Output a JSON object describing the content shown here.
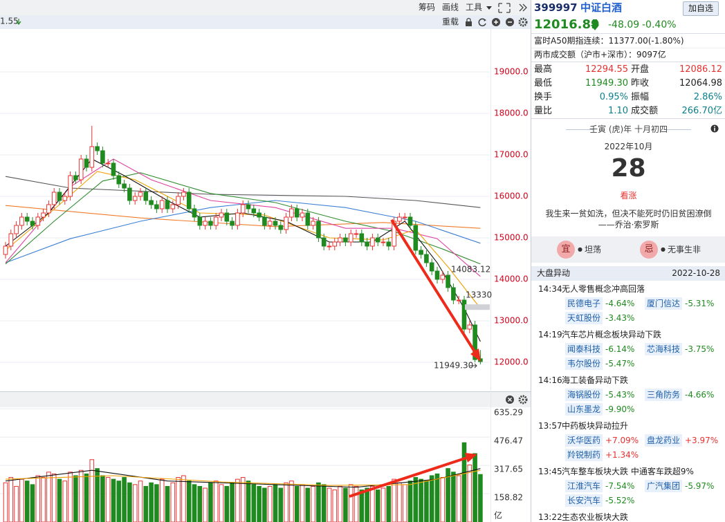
{
  "toolbar": {
    "items": [
      "筹码",
      "画线",
      "工具"
    ]
  },
  "chart_header": {
    "ma_label": "1.55",
    "reload": "重载"
  },
  "chart_data": [
    {
      "type": "candlestick",
      "categories": [
        null,
        null,
        null,
        null,
        null,
        null,
        null,
        null,
        null,
        null,
        null,
        null,
        null,
        null,
        null,
        null,
        null,
        null,
        null,
        null,
        null,
        null,
        null,
        null,
        null,
        null,
        null,
        null,
        null,
        null,
        null,
        null,
        null,
        null,
        null,
        null,
        null,
        null,
        null,
        null,
        null,
        null,
        null,
        null,
        null,
        null,
        null,
        null,
        null,
        null,
        null,
        null,
        null,
        null,
        null,
        null,
        null,
        null,
        null,
        null,
        null,
        null,
        null,
        null,
        null,
        null,
        null,
        null,
        null,
        null,
        null,
        null,
        null,
        null,
        null,
        null,
        null,
        null,
        null,
        null,
        null,
        null,
        null,
        null,
        null,
        null,
        null,
        null,
        null
      ],
      "open": [
        14600,
        14800,
        15100,
        15300,
        15500,
        15400,
        15300,
        15500,
        15600,
        15800,
        16100,
        15900,
        16000,
        16500,
        16400,
        16900,
        16700,
        17200,
        17100,
        16800,
        16800,
        16500,
        16300,
        16200,
        15900,
        16000,
        16100,
        15900,
        15800,
        15700,
        15900,
        15700,
        15800,
        16000,
        16100,
        15700,
        15500,
        15300,
        15400,
        15300,
        15500,
        15600,
        15400,
        15300,
        15600,
        15800,
        15700,
        15600,
        15500,
        15300,
        15400,
        15300,
        15200,
        15500,
        15700,
        15500,
        15600,
        15300,
        15400,
        15000,
        14800,
        14800,
        14900,
        15000,
        14900,
        15100,
        15100,
        14900,
        14800,
        15000,
        14900,
        14900,
        14800,
        15400,
        15500,
        15500,
        15300,
        14700,
        14600,
        14400,
        14200,
        14000,
        14100,
        13800,
        13500,
        13500,
        12800,
        12900,
        12086.12
      ],
      "high": [
        14900,
        15200,
        15400,
        15600,
        15600,
        15500,
        15600,
        15700,
        15900,
        16200,
        16200,
        16100,
        16600,
        16600,
        17000,
        17000,
        17700,
        17300,
        17200,
        16900,
        16900,
        16600,
        16400,
        16300,
        16100,
        16200,
        16200,
        16000,
        15900,
        16000,
        16000,
        15900,
        16100,
        16200,
        16200,
        15800,
        15600,
        15500,
        15500,
        15600,
        15700,
        15700,
        15500,
        15700,
        15900,
        15900,
        15800,
        15700,
        15600,
        15500,
        15500,
        15400,
        15600,
        15800,
        15800,
        15700,
        15700,
        15500,
        15500,
        15100,
        14900,
        15000,
        15100,
        15100,
        15200,
        15200,
        15200,
        15000,
        15100,
        15100,
        15000,
        15000,
        15500,
        15600,
        15600,
        15600,
        15400,
        14800,
        14700,
        14500,
        14300,
        14200,
        14200,
        13900,
        13600,
        13600,
        13000,
        13000,
        12294.55
      ],
      "low": [
        14500,
        14700,
        15000,
        15200,
        15300,
        15200,
        15200,
        15400,
        15500,
        15700,
        15800,
        15800,
        15900,
        16300,
        16300,
        16600,
        16600,
        17000,
        16700,
        16700,
        16400,
        16200,
        16100,
        15800,
        15800,
        15900,
        15800,
        15700,
        15600,
        15600,
        15600,
        15600,
        15700,
        15900,
        15600,
        15400,
        15200,
        15200,
        15200,
        15200,
        15400,
        15300,
        15200,
        15200,
        15500,
        15600,
        15500,
        15400,
        15200,
        15200,
        15200,
        15100,
        15100,
        15400,
        15400,
        15400,
        15200,
        15200,
        14900,
        14700,
        14700,
        14700,
        14800,
        14800,
        14800,
        15000,
        14800,
        14700,
        14700,
        14800,
        14800,
        14700,
        14700,
        15300,
        15400,
        15200,
        14600,
        14500,
        14300,
        14100,
        13900,
        13900,
        13700,
        13400,
        13400,
        12700,
        12700,
        12000,
        11949.3
      ],
      "close": [
        14800,
        15100,
        15300,
        15500,
        15400,
        15300,
        15500,
        15600,
        15800,
        16100,
        15900,
        16000,
        16500,
        16400,
        16900,
        16700,
        17200,
        17100,
        16800,
        16800,
        16500,
        16300,
        16200,
        15900,
        16000,
        16100,
        15900,
        15800,
        15700,
        15900,
        15700,
        15800,
        16000,
        16100,
        15700,
        15500,
        15300,
        15400,
        15300,
        15500,
        15600,
        15400,
        15300,
        15600,
        15800,
        15700,
        15600,
        15500,
        15300,
        15400,
        15300,
        15200,
        15500,
        15700,
        15500,
        15600,
        15300,
        15400,
        15000,
        14800,
        14800,
        14900,
        15000,
        14900,
        15100,
        15100,
        14900,
        14800,
        15000,
        14900,
        14900,
        14800,
        15400,
        15500,
        15500,
        15300,
        14700,
        14600,
        14400,
        14200,
        14000,
        14100,
        13800,
        13500,
        13500,
        12800,
        12900,
        12064.98,
        12016.89
      ],
      "up_color": "#e8312f",
      "down_color": "#1f8a1f",
      "ylim": [
        11400,
        19900
      ],
      "yticks": [
        {
          "value": 12000,
          "label": "12000.0"
        },
        {
          "value": 13000,
          "label": "13000.0"
        },
        {
          "value": 14000,
          "label": "14000.0"
        },
        {
          "value": 15000,
          "label": "15000.0"
        },
        {
          "value": 16000,
          "label": "16000.0"
        },
        {
          "value": 17000,
          "label": "17000.0"
        },
        {
          "value": 18000,
          "label": "18000.0"
        },
        {
          "value": 19000,
          "label": "19000.0"
        }
      ],
      "grid": true,
      "price_labels": [
        14083.12,
        13330,
        {
          "value": 11949.3,
          "label": "11949.30"
        }
      ],
      "moving_averages": [
        {
          "color": "#555555",
          "x": [
            0,
            12,
            38,
            63,
            76,
            88
          ],
          "values": [
            16480,
            16200,
            16050,
            16000,
            15900,
            15730
          ]
        },
        {
          "color": "#f07b2a",
          "x": [
            0,
            25,
            50,
            70,
            88
          ],
          "values": [
            15780,
            15480,
            15270,
            15370,
            15230
          ]
        },
        {
          "color": "#3b7fd6",
          "x": [
            0,
            12,
            25,
            38,
            50,
            63,
            76,
            88
          ],
          "values": [
            14400,
            14980,
            15400,
            15730,
            15900,
            15730,
            15400,
            14870
          ]
        },
        {
          "color": "#2e8b2e",
          "x": [
            0,
            9,
            18,
            25,
            38,
            50,
            63,
            72,
            81,
            88
          ],
          "values": [
            14370,
            15400,
            16370,
            16570,
            16070,
            15850,
            15400,
            15150,
            14730,
            14370
          ]
        },
        {
          "color": "#e040a0",
          "x": [
            0,
            12,
            20,
            27,
            38,
            50,
            63,
            72,
            80,
            88
          ],
          "values": [
            14400,
            16230,
            16900,
            16400,
            15900,
            15730,
            15230,
            15230,
            14980,
            14070
          ]
        },
        {
          "color": "#f0a000",
          "x": [
            0,
            10,
            17,
            24,
            36,
            48,
            60,
            70,
            76,
            82,
            88
          ],
          "values": [
            14700,
            15800,
            16600,
            16400,
            15600,
            15550,
            15000,
            14950,
            15200,
            14300,
            13300
          ]
        },
        {
          "color": "#111111",
          "x": [
            0,
            8,
            16,
            22,
            30,
            36,
            44,
            52,
            60,
            68,
            74,
            80,
            85,
            88
          ],
          "values": [
            14800,
            15600,
            16900,
            16500,
            15900,
            15500,
            15600,
            15400,
            14900,
            14900,
            15400,
            14400,
            13300,
            12500
          ]
        }
      ]
    },
    {
      "type": "bar",
      "values": [
        220,
        250,
        200,
        240,
        230,
        210,
        260,
        250,
        280,
        270,
        240,
        230,
        280,
        260,
        290,
        270,
        350,
        300,
        260,
        250,
        240,
        230,
        250,
        220,
        210,
        230,
        200,
        220,
        210,
        240,
        200,
        220,
        250,
        260,
        230,
        210,
        200,
        190,
        220,
        230,
        210,
        200,
        220,
        240,
        250,
        230,
        210,
        200,
        190,
        200,
        210,
        190,
        220,
        230,
        200,
        210,
        190,
        200,
        220,
        210,
        190,
        180,
        200,
        190,
        210,
        200,
        180,
        190,
        200,
        180,
        190,
        200,
        240,
        220,
        210,
        230,
        250,
        240,
        230,
        260,
        270,
        250,
        300,
        280,
        260,
        445,
        320,
        384,
        266.7
      ],
      "ylim": [
        0,
        640
      ],
      "yticks": [
        158.82,
        317.65,
        476.47,
        635.29
      ],
      "unit": "亿",
      "moving_averages": [
        {
          "color": "#111111",
          "x": [
            0,
            16,
            30,
            50,
            65,
            80,
            88
          ],
          "values": [
            230,
            290,
            230,
            210,
            195,
            240,
            300
          ]
        },
        {
          "color": "#f0a000",
          "x": [
            0,
            20,
            40,
            60,
            75,
            88
          ],
          "values": [
            240,
            260,
            225,
            205,
            210,
            290
          ]
        }
      ]
    }
  ],
  "quote": {
    "code": "399997",
    "name": "中证白酒",
    "add_button": "加自选",
    "price": "12016.89",
    "change": "-48.09",
    "change_pct": "-0.40%",
    "a50": "富时A50期指连续：11377.00(-1.80%)",
    "turnover": "两市成交额（沪市+深市）：9097亿",
    "stats": [
      [
        "最高",
        "12294.55",
        "开盘",
        "12086.12"
      ],
      [
        "最低",
        "11949.30",
        "昨收",
        "12064.98"
      ],
      [
        "换手",
        "0.95%",
        "振幅",
        "2.86%"
      ],
      [
        "量比",
        "1.10",
        "成交额",
        "266.70亿"
      ]
    ]
  },
  "calendar": {
    "lunar": "壬寅 (虎)年 十月初四",
    "month": "2022年10月",
    "day": "28",
    "mood": "看涨",
    "quote": "我生来一贫如洗，但决不能死时仍旧贫困潦倒",
    "author": "——乔治·索罗斯",
    "yi": {
      "label": "宜",
      "text": "坦荡"
    },
    "ji": {
      "label": "忌",
      "text": "无事生非"
    }
  },
  "market_moves": {
    "title": "大盘异动",
    "date": "2022-10-28",
    "items": [
      {
        "time": "14:34",
        "title": "无人零售概念冲高回落",
        "stocks": [
          {
            "name": "民德电子",
            "change": "-4.64%"
          },
          {
            "name": "厦门信达",
            "change": "-5.31%"
          },
          {
            "name": "天虹股份",
            "change": "-3.43%"
          }
        ]
      },
      {
        "time": "14:19",
        "title": "汽车芯片概念板块异动下跌",
        "stocks": [
          {
            "name": "闻泰科技",
            "change": "-6.14%"
          },
          {
            "name": "芯海科技",
            "change": "-3.75%"
          },
          {
            "name": "韦尔股份",
            "change": "-5.47%"
          }
        ]
      },
      {
        "time": "14:16",
        "title": "海工装备异动下跌",
        "stocks": [
          {
            "name": "海锅股份",
            "change": "-5.43%"
          },
          {
            "name": "三角防务",
            "change": "-4.66%"
          },
          {
            "name": "山东墨龙",
            "change": "-9.90%"
          }
        ]
      },
      {
        "time": "13:57",
        "title": "中药板块异动拉升",
        "stocks": [
          {
            "name": "沃华医药",
            "change": "+7.09%"
          },
          {
            "name": "盘龙药业",
            "change": "+3.97%"
          },
          {
            "name": "羚锐制药",
            "change": "+1.34%"
          }
        ]
      },
      {
        "time": "13:45",
        "title": "汽车整车板块大跌 中通客车跌超9%",
        "stocks": [
          {
            "name": "江淮汽车",
            "change": "-7.54%"
          },
          {
            "name": "广汽集团",
            "change": "-5.97%"
          },
          {
            "name": "长安汽车",
            "change": "-5.52%"
          }
        ]
      },
      {
        "time": "13:22",
        "title": "生态农业板块大跌",
        "stocks": []
      }
    ]
  }
}
